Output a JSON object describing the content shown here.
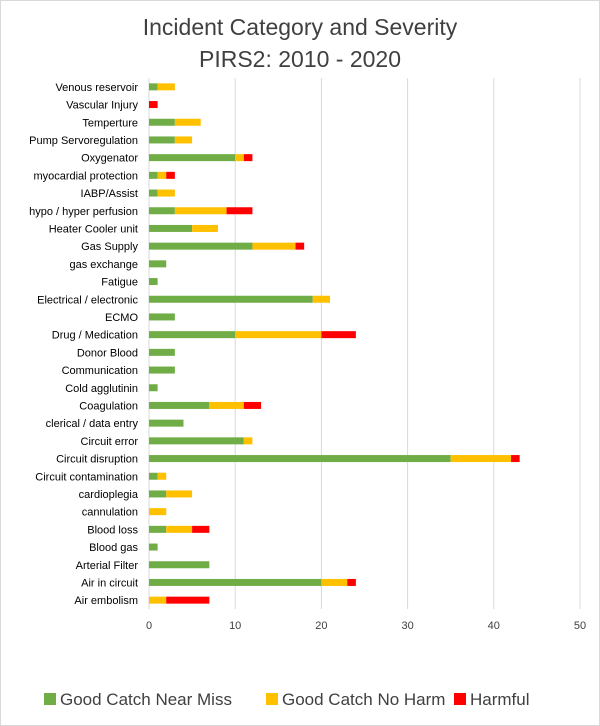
{
  "chart_data": {
    "type": "bar",
    "stacked": true,
    "orientation": "horizontal",
    "title": "Incident Category and Severity",
    "subtitle": "PIRS2: 2010 - 2020",
    "xlim": [
      0,
      50
    ],
    "xticks": [
      0,
      10,
      20,
      30,
      40,
      50
    ],
    "grid": true,
    "legend_position": "bottom",
    "categories": [
      "Venous reservoir",
      "Vascular Injury",
      "Temperture",
      "Pump Servoregulation",
      "Oxygenator",
      "myocardial protection",
      "IABP/Assist",
      "hypo / hyper perfusion",
      "Heater Cooler unit",
      "Gas Supply",
      "gas exchange",
      "Fatigue",
      "Electrical / electronic",
      "ECMO",
      "Drug / Medication",
      "Donor Blood",
      "Communication",
      "Cold agglutinin",
      "Coagulation",
      "clerical / data entry",
      "Circuit error",
      "Circuit disruption",
      "Circuit contamination",
      "cardioplegia",
      "cannulation",
      "Blood loss",
      "Blood gas",
      "Arterial Filter",
      "Air in circuit",
      "Air embolism"
    ],
    "series": [
      {
        "name": "Good Catch Near Miss",
        "color": "#70ad47",
        "values": [
          1,
          0,
          3,
          3,
          10,
          1,
          1,
          3,
          5,
          12,
          2,
          1,
          19,
          3,
          10,
          3,
          3,
          1,
          7,
          4,
          11,
          35,
          1,
          2,
          0,
          2,
          1,
          7,
          20,
          0
        ]
      },
      {
        "name": "Good Catch No Harm",
        "color": "#ffc000",
        "values": [
          2,
          0,
          3,
          2,
          1,
          1,
          2,
          6,
          3,
          5,
          0,
          0,
          2,
          0,
          10,
          0,
          0,
          0,
          4,
          0,
          1,
          7,
          1,
          3,
          2,
          3,
          0,
          0,
          3,
          2
        ]
      },
      {
        "name": "Harmful",
        "color": "#ff0000",
        "values": [
          0,
          1,
          0,
          0,
          1,
          1,
          0,
          3,
          0,
          1,
          0,
          0,
          0,
          0,
          4,
          0,
          0,
          0,
          2,
          0,
          0,
          1,
          0,
          0,
          0,
          2,
          0,
          0,
          1,
          5
        ]
      }
    ]
  }
}
